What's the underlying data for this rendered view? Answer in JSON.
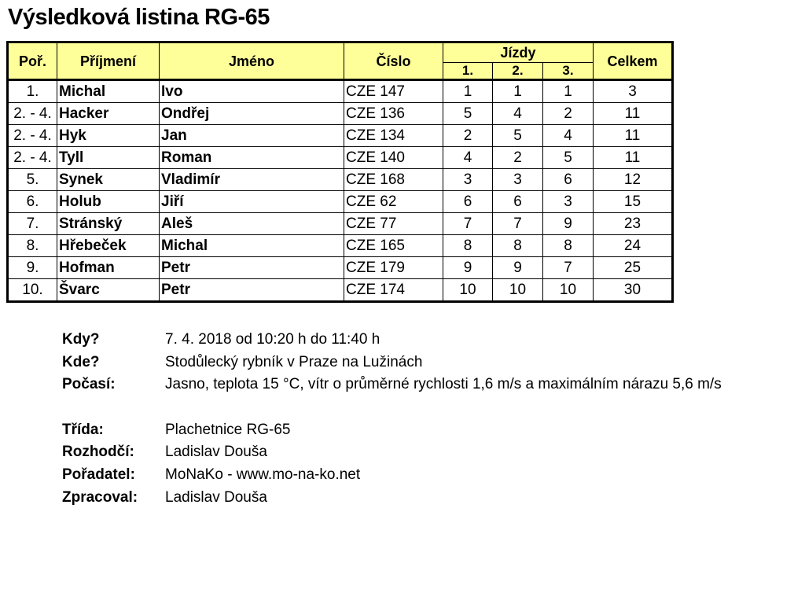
{
  "title": "Výsledková listina RG-65",
  "table": {
    "headers": {
      "rank": "Poř.",
      "surname": "Příjmení",
      "name": "Jméno",
      "number": "Číslo",
      "races": "Jízdy",
      "race1": "1.",
      "race2": "2.",
      "race3": "3.",
      "total": "Celkem"
    },
    "rows": [
      [
        "1.",
        "Michal",
        "Ivo",
        "CZE 147",
        "1",
        "1",
        "1",
        "3"
      ],
      [
        "2. - 4.",
        "Hacker",
        "Ondřej",
        "CZE 136",
        "5",
        "4",
        "2",
        "11"
      ],
      [
        "2. - 4.",
        "Hyk",
        "Jan",
        "CZE 134",
        "2",
        "5",
        "4",
        "11"
      ],
      [
        "2. - 4.",
        "Tyll",
        "Roman",
        "CZE 140",
        "4",
        "2",
        "5",
        "11"
      ],
      [
        "5.",
        "Synek",
        "Vladimír",
        "CZE 168",
        "3",
        "3",
        "6",
        "12"
      ],
      [
        "6.",
        "Holub",
        "Jiří",
        "CZE 62",
        "6",
        "6",
        "3",
        "15"
      ],
      [
        "7.",
        "Stránský",
        "Aleš",
        "CZE 77",
        "7",
        "7",
        "9",
        "23"
      ],
      [
        "8.",
        "Hřebeček",
        "Michal",
        "CZE 165",
        "8",
        "8",
        "8",
        "24"
      ],
      [
        "9.",
        "Hofman",
        "Petr",
        "CZE 179",
        "9",
        "9",
        "7",
        "25"
      ],
      [
        "10.",
        "Švarc",
        "Petr",
        "CZE 174",
        "10",
        "10",
        "10",
        "30"
      ]
    ]
  },
  "info": [
    {
      "label": "Kdy?",
      "value": "7. 4. 2018 od 10:20 h do 11:40 h"
    },
    {
      "label": "Kde?",
      "value": "Stodůlecký rybník v Praze na Lužinách"
    },
    {
      "label": "Počasí:",
      "value": "Jasno, teplota 15 °C, vítr o průměrné rychlosti 1,6 m/s a maximálním nárazu 5,6 m/s"
    },
    {
      "label": "Třída:",
      "value": "Plachetnice RG-65"
    },
    {
      "label": "Rozhodčí:",
      "value": "Ladislav Douša"
    },
    {
      "label": "Pořadatel:",
      "value": "MoNaKo - www.mo-na-ko.net"
    },
    {
      "label": "Zpracoval:",
      "value": "Ladislav Douša"
    }
  ],
  "colors": {
    "header_bg": "#ffff99"
  }
}
